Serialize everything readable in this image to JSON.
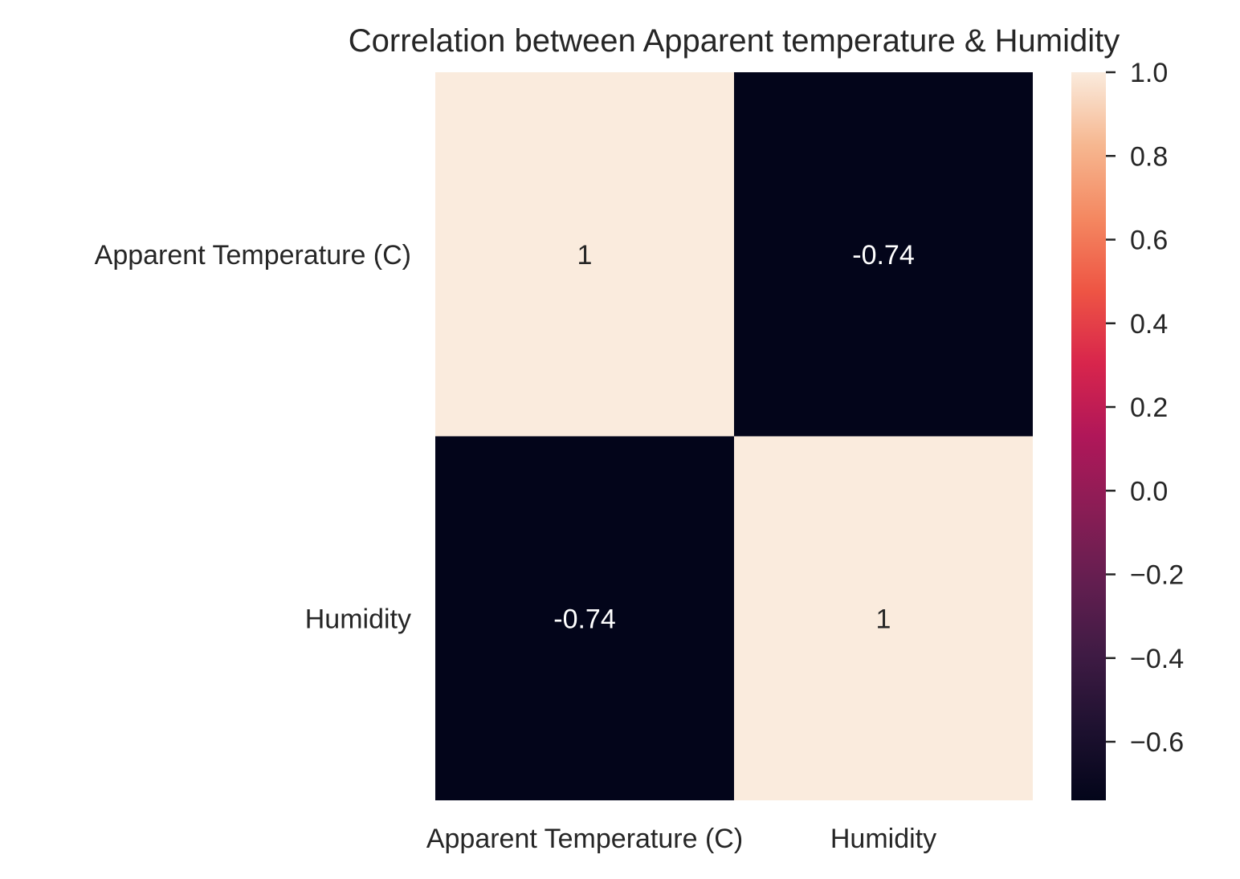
{
  "chart_data": {
    "type": "heatmap",
    "title": "Correlation between Apparent temperature & Humidity",
    "rows": [
      "Apparent Temperature (C)",
      "Humidity"
    ],
    "columns": [
      "Apparent Temperature (C)",
      "Humidity"
    ],
    "values": [
      [
        1.0,
        -0.74
      ],
      [
        -0.74,
        1.0
      ]
    ],
    "annotations": [
      [
        "1",
        "-0.74"
      ],
      [
        "-0.74",
        "1"
      ]
    ],
    "colorbar": {
      "range": [
        -0.74,
        1.0
      ],
      "ticks": [
        -0.6,
        -0.4,
        -0.2,
        0.0,
        0.2,
        0.4,
        0.6,
        0.8,
        1.0
      ],
      "tick_labels": [
        "−0.6",
        "−0.4",
        "−0.2",
        "0.0",
        "0.2",
        "0.4",
        "0.6",
        "0.8",
        "1.0"
      ],
      "colormap": "rocket"
    },
    "colors": {
      "low": "#03051a",
      "high": "#faebdd",
      "text_on_dark": "#ffffff",
      "text_on_light": "#262626"
    }
  }
}
